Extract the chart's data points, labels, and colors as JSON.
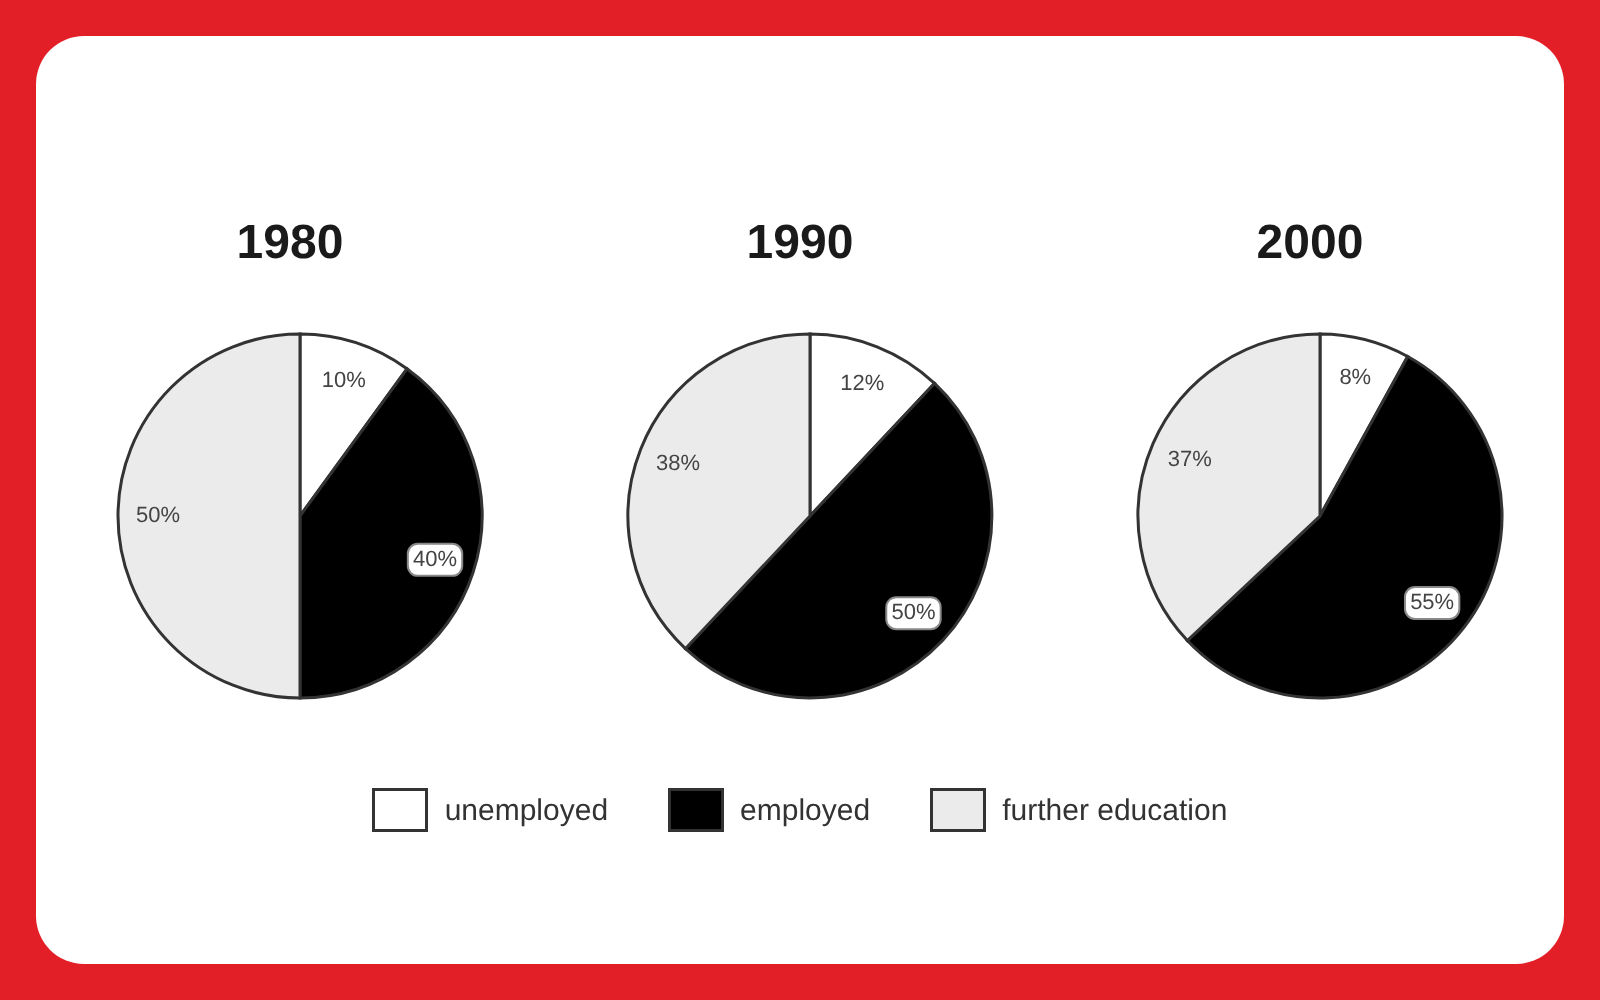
{
  "chart_data": {
    "type": "pie",
    "categories": [
      "unemployed",
      "employed",
      "further education"
    ],
    "colors": [
      "#ffffff",
      "#000000",
      "#ebebeb"
    ],
    "series": [
      {
        "name": "1980",
        "values": [
          10,
          40,
          50
        ],
        "value_labels": [
          "10%",
          "40%",
          "50%"
        ]
      },
      {
        "name": "1990",
        "values": [
          12,
          50,
          38
        ],
        "value_labels": [
          "12%",
          "50%",
          "38%"
        ]
      },
      {
        "name": "2000",
        "values": [
          8,
          55,
          37
        ],
        "value_labels": [
          "8%",
          "55%",
          "37%"
        ]
      }
    ],
    "legend": "bottom"
  }
}
